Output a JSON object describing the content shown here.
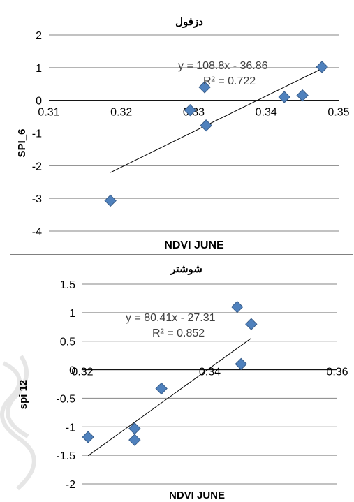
{
  "charts": [
    {
      "type": "scatter",
      "title": "دزفول",
      "xlabel": "NDVI JUNE",
      "ylabel": "SPI_6",
      "xlim": [
        0.31,
        0.35
      ],
      "ylim": [
        -4,
        2
      ],
      "x_ticks": [
        0.31,
        0.32,
        0.33,
        0.34,
        0.35
      ],
      "y_ticks": [
        2,
        1,
        0,
        -1,
        -2,
        -3,
        -4
      ],
      "x_tick_labels": [
        "0.31",
        "0.32",
        "0.33",
        "0.34",
        "0.35"
      ],
      "y_tick_labels": [
        "2",
        "1",
        "0",
        "-1",
        "-2",
        "-3",
        "-4"
      ],
      "grid": "horizontal",
      "marker_color": "#4F81BD",
      "points": [
        {
          "x": 0.3185,
          "y": -3.07
        },
        {
          "x": 0.3295,
          "y": -0.3
        },
        {
          "x": 0.3315,
          "y": 0.4
        },
        {
          "x": 0.3317,
          "y": -0.77
        },
        {
          "x": 0.3425,
          "y": 0.1
        },
        {
          "x": 0.345,
          "y": 0.15
        },
        {
          "x": 0.3477,
          "y": 1.02
        }
      ],
      "trendline": {
        "slope": 108.8,
        "intercept": -36.86,
        "x_from": 0.3185,
        "x_to": 0.3477
      },
      "equation_label": "y = 108.8x - 36.86",
      "r2_label": "R² = 0.722"
    },
    {
      "type": "scatter",
      "title": "شوشتر",
      "xlabel": "NDVI JUNE",
      "ylabel": "spi 12",
      "xlim": [
        0.32,
        0.36
      ],
      "ylim": [
        -2,
        1.5
      ],
      "x_ticks": [
        0.32,
        0.34,
        0.36
      ],
      "y_ticks": [
        1.5,
        1,
        0.5,
        0,
        -0.5,
        -1,
        -1.5,
        -2
      ],
      "x_tick_labels": [
        "0.32",
        "0.34",
        "0.36"
      ],
      "y_tick_labels": [
        "1.5",
        "1",
        "0.5",
        "0",
        "-0.5",
        "-1",
        "-1.5",
        "-2"
      ],
      "grid": "horizontal",
      "marker_color": "#4F81BD",
      "points": [
        {
          "x": 0.3209,
          "y": -1.18
        },
        {
          "x": 0.3282,
          "y": -1.03
        },
        {
          "x": 0.3282,
          "y": -1.23
        },
        {
          "x": 0.3324,
          "y": -0.33
        },
        {
          "x": 0.3443,
          "y": 1.1
        },
        {
          "x": 0.3449,
          "y": 0.1
        },
        {
          "x": 0.3465,
          "y": 0.8
        }
      ],
      "trendline": {
        "slope": 80.41,
        "intercept": -27.31,
        "x_from": 0.3209,
        "x_to": 0.3465
      },
      "equation_label": "y = 80.41x - 27.31",
      "r2_label": "R² = 0.852"
    }
  ]
}
